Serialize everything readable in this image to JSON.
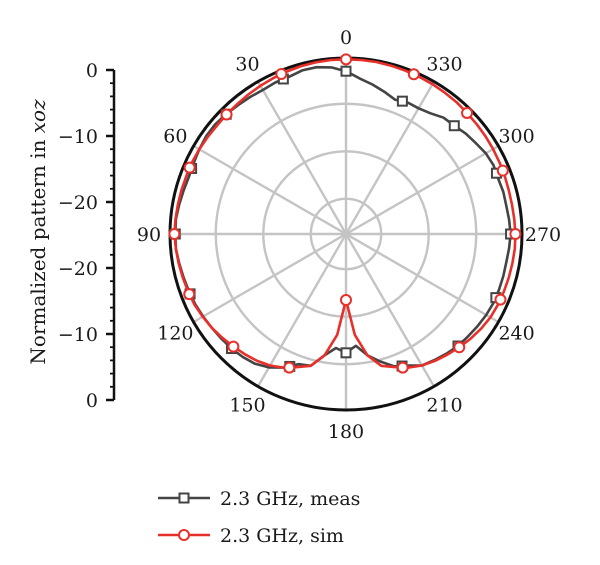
{
  "chart_data": {
    "type": "polar",
    "ylabel_prefix": "Normalized pattern in ",
    "ylabel_italic": "xoz",
    "radial_ticks": [
      "0",
      "−10",
      "−20",
      "−20",
      "−10",
      "0"
    ],
    "radial_range": [
      -40,
      0
    ],
    "angle_ticks": [
      "0",
      "30",
      "60",
      "90",
      "120",
      "150",
      "180",
      "210",
      "240",
      "270",
      "300",
      "330"
    ],
    "angle_direction": "counterclockwise",
    "zero_location": "top",
    "grid": true,
    "legend_position": "bottom",
    "series": [
      {
        "name": "2.3 GHz, meas",
        "color": "#444444",
        "marker": "square",
        "angles": [
          0,
          5,
          10,
          15,
          20,
          25,
          30,
          35,
          40,
          45,
          50,
          55,
          60,
          65,
          70,
          75,
          80,
          85,
          90,
          95,
          100,
          105,
          110,
          115,
          120,
          125,
          130,
          135,
          140,
          145,
          150,
          155,
          160,
          165,
          170,
          175,
          180,
          185,
          190,
          195,
          200,
          205,
          210,
          215,
          220,
          225,
          230,
          235,
          240,
          245,
          250,
          255,
          260,
          265,
          270,
          275,
          280,
          285,
          290,
          295,
          300,
          305,
          310,
          315,
          320,
          325,
          330,
          335,
          340,
          345,
          350,
          355
        ],
        "values": [
          -3.0,
          -2.0,
          -1.5,
          -1.5,
          -2.0,
          -2.0,
          -2.2,
          -2.0,
          -1.8,
          -1.5,
          -1.2,
          -1.2,
          -1.5,
          -1.8,
          -2.0,
          -1.8,
          -1.5,
          -1.2,
          -1.2,
          -1.2,
          -1.5,
          -1.8,
          -2.0,
          -2.2,
          -2.5,
          -2.8,
          -3.0,
          -3.2,
          -3.5,
          -4.0,
          -5.0,
          -6.5,
          -8.5,
          -9.0,
          -12.0,
          -14.0,
          -13.0,
          -14.5,
          -12.0,
          -10.0,
          -8.0,
          -7.0,
          -5.5,
          -5.0,
          -4.5,
          -4.0,
          -3.8,
          -3.5,
          -3.2,
          -3.0,
          -3.0,
          -3.0,
          -3.0,
          -2.8,
          -2.6,
          -2.8,
          -3.0,
          -3.0,
          -3.2,
          -3.0,
          -3.3,
          -4.0,
          -4.5,
          -5.2,
          -5.5,
          -6.5,
          -7.0,
          -7.0,
          -7.5,
          -6.5,
          -5.5,
          -4.5
        ],
        "marker_angles": [
          0,
          22,
          45,
          67,
          90,
          111,
          135,
          157,
          180,
          203,
          225,
          247,
          270,
          292,
          315,
          337
        ]
      },
      {
        "name": "2.3 GHz, sim",
        "color": "#e8302a",
        "marker": "circle",
        "angles": [
          0,
          5,
          10,
          15,
          20,
          25,
          30,
          35,
          40,
          45,
          50,
          55,
          60,
          65,
          70,
          75,
          80,
          85,
          90,
          95,
          100,
          105,
          110,
          115,
          120,
          125,
          130,
          135,
          140,
          145,
          150,
          155,
          160,
          165,
          170,
          175,
          180,
          185,
          190,
          195,
          200,
          205,
          210,
          215,
          220,
          225,
          230,
          235,
          240,
          245,
          250,
          255,
          260,
          265,
          270,
          275,
          280,
          285,
          290,
          295,
          300,
          305,
          310,
          315,
          320,
          325,
          330,
          335,
          340,
          345,
          350,
          355
        ],
        "values": [
          -0.3,
          -0.3,
          -0.4,
          -0.5,
          -0.7,
          -0.9,
          -1.1,
          -1.3,
          -1.5,
          -1.6,
          -1.7,
          -1.6,
          -1.5,
          -1.4,
          -1.4,
          -1.3,
          -1.2,
          -1.1,
          -1.0,
          -1.2,
          -1.4,
          -1.6,
          -1.8,
          -2.0,
          -2.4,
          -2.8,
          -3.3,
          -3.8,
          -4.3,
          -4.8,
          -5.5,
          -6.5,
          -7.8,
          -9.0,
          -12.0,
          -17.0,
          -25.0,
          -17.0,
          -12.0,
          -9.0,
          -7.8,
          -6.5,
          -5.5,
          -4.8,
          -4.2,
          -3.6,
          -3.0,
          -2.5,
          -2.1,
          -1.9,
          -1.8,
          -1.7,
          -1.6,
          -1.5,
          -1.5,
          -1.6,
          -1.7,
          -1.7,
          -1.6,
          -1.5,
          -1.4,
          -1.3,
          -1.2,
          -1.1,
          -0.9,
          -0.8,
          -0.7,
          -0.6,
          -0.5,
          -0.4,
          -0.3,
          -0.3
        ],
        "marker_angles": [
          0,
          22,
          45,
          67,
          90,
          111,
          135,
          157,
          180,
          203,
          225,
          247,
          270,
          292,
          315,
          337
        ]
      }
    ]
  }
}
